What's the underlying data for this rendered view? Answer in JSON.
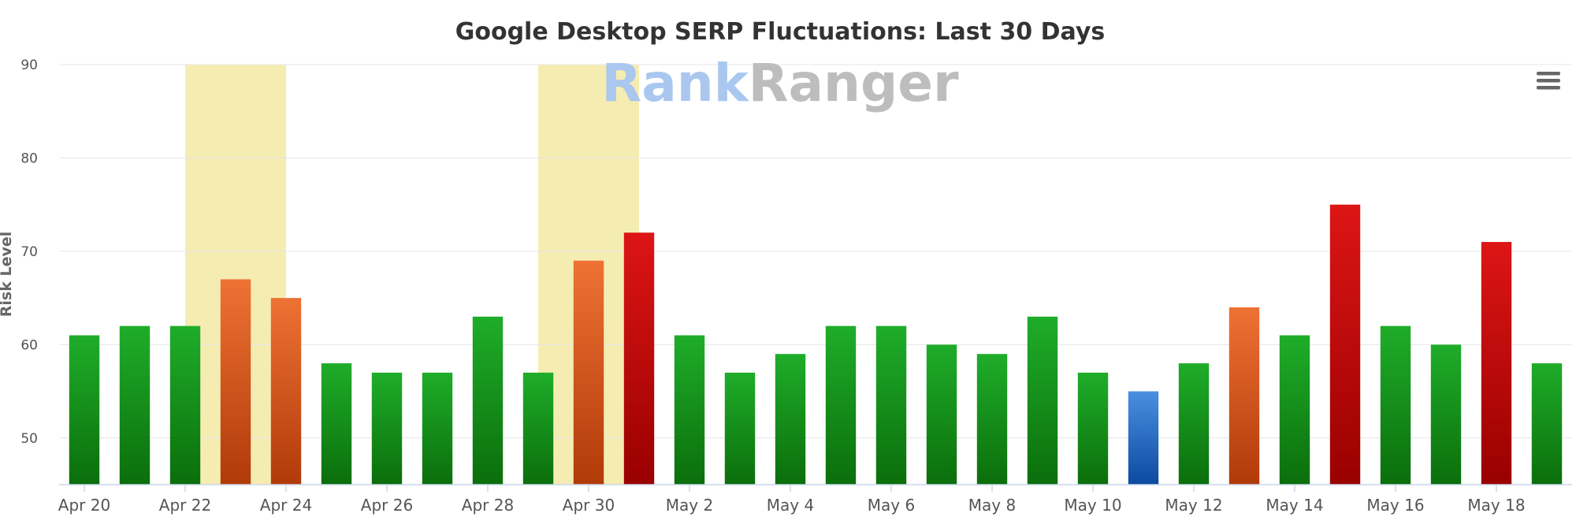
{
  "chart_data": {
    "type": "bar",
    "title": "Google Desktop SERP Fluctuations: Last 30 Days",
    "xlabel": "",
    "ylabel": "Risk Level",
    "ylim": [
      45,
      90
    ],
    "yticks": [
      50,
      60,
      70,
      80,
      90
    ],
    "grid": true,
    "categories": [
      "Apr 20",
      "Apr 21",
      "Apr 22",
      "Apr 23",
      "Apr 24",
      "Apr 25",
      "Apr 26",
      "Apr 27",
      "Apr 28",
      "Apr 29",
      "Apr 30",
      "May 1",
      "May 2",
      "May 3",
      "May 4",
      "May 5",
      "May 6",
      "May 7",
      "May 8",
      "May 9",
      "May 10",
      "May 11",
      "May 12",
      "May 13",
      "May 14",
      "May 15",
      "May 16",
      "May 17",
      "May 18",
      "May 19"
    ],
    "x_tick_labels": [
      "Apr 20",
      "Apr 22",
      "Apr 24",
      "Apr 26",
      "Apr 28",
      "Apr 30",
      "May 2",
      "May 4",
      "May 6",
      "May 8",
      "May 10",
      "May 12",
      "May 14",
      "May 16",
      "May 18"
    ],
    "values": [
      61,
      62,
      62,
      67,
      65,
      58,
      57,
      57,
      63,
      57,
      69,
      72,
      61,
      57,
      59,
      62,
      62,
      60,
      59,
      63,
      57,
      55,
      58,
      64,
      61,
      75,
      62,
      60,
      71,
      58
    ],
    "levels": [
      "green",
      "green",
      "green",
      "orange",
      "orange",
      "green",
      "green",
      "green",
      "green",
      "green",
      "orange",
      "red",
      "green",
      "green",
      "green",
      "green",
      "green",
      "green",
      "green",
      "green",
      "green",
      "blue",
      "green",
      "orange",
      "green",
      "red",
      "green",
      "green",
      "red",
      "green"
    ],
    "highlight_bands": [
      {
        "from": "Apr 22",
        "to": "Apr 24",
        "color": "#f5ecb2"
      },
      {
        "from": "Apr 29",
        "to": "May 1",
        "color": "#f5ecb2"
      }
    ],
    "colors": {
      "green": [
        "#1fad2a",
        "#0b6e0b"
      ],
      "orange": [
        "#ee7234",
        "#b13a09"
      ],
      "red": [
        "#dd1515",
        "#990000"
      ],
      "blue": [
        "#4b8fe0",
        "#0b4aa0"
      ]
    },
    "watermark": {
      "part1": "Rank",
      "part2": "Ranger"
    },
    "menu_icon": "hamburger-menu-icon"
  }
}
